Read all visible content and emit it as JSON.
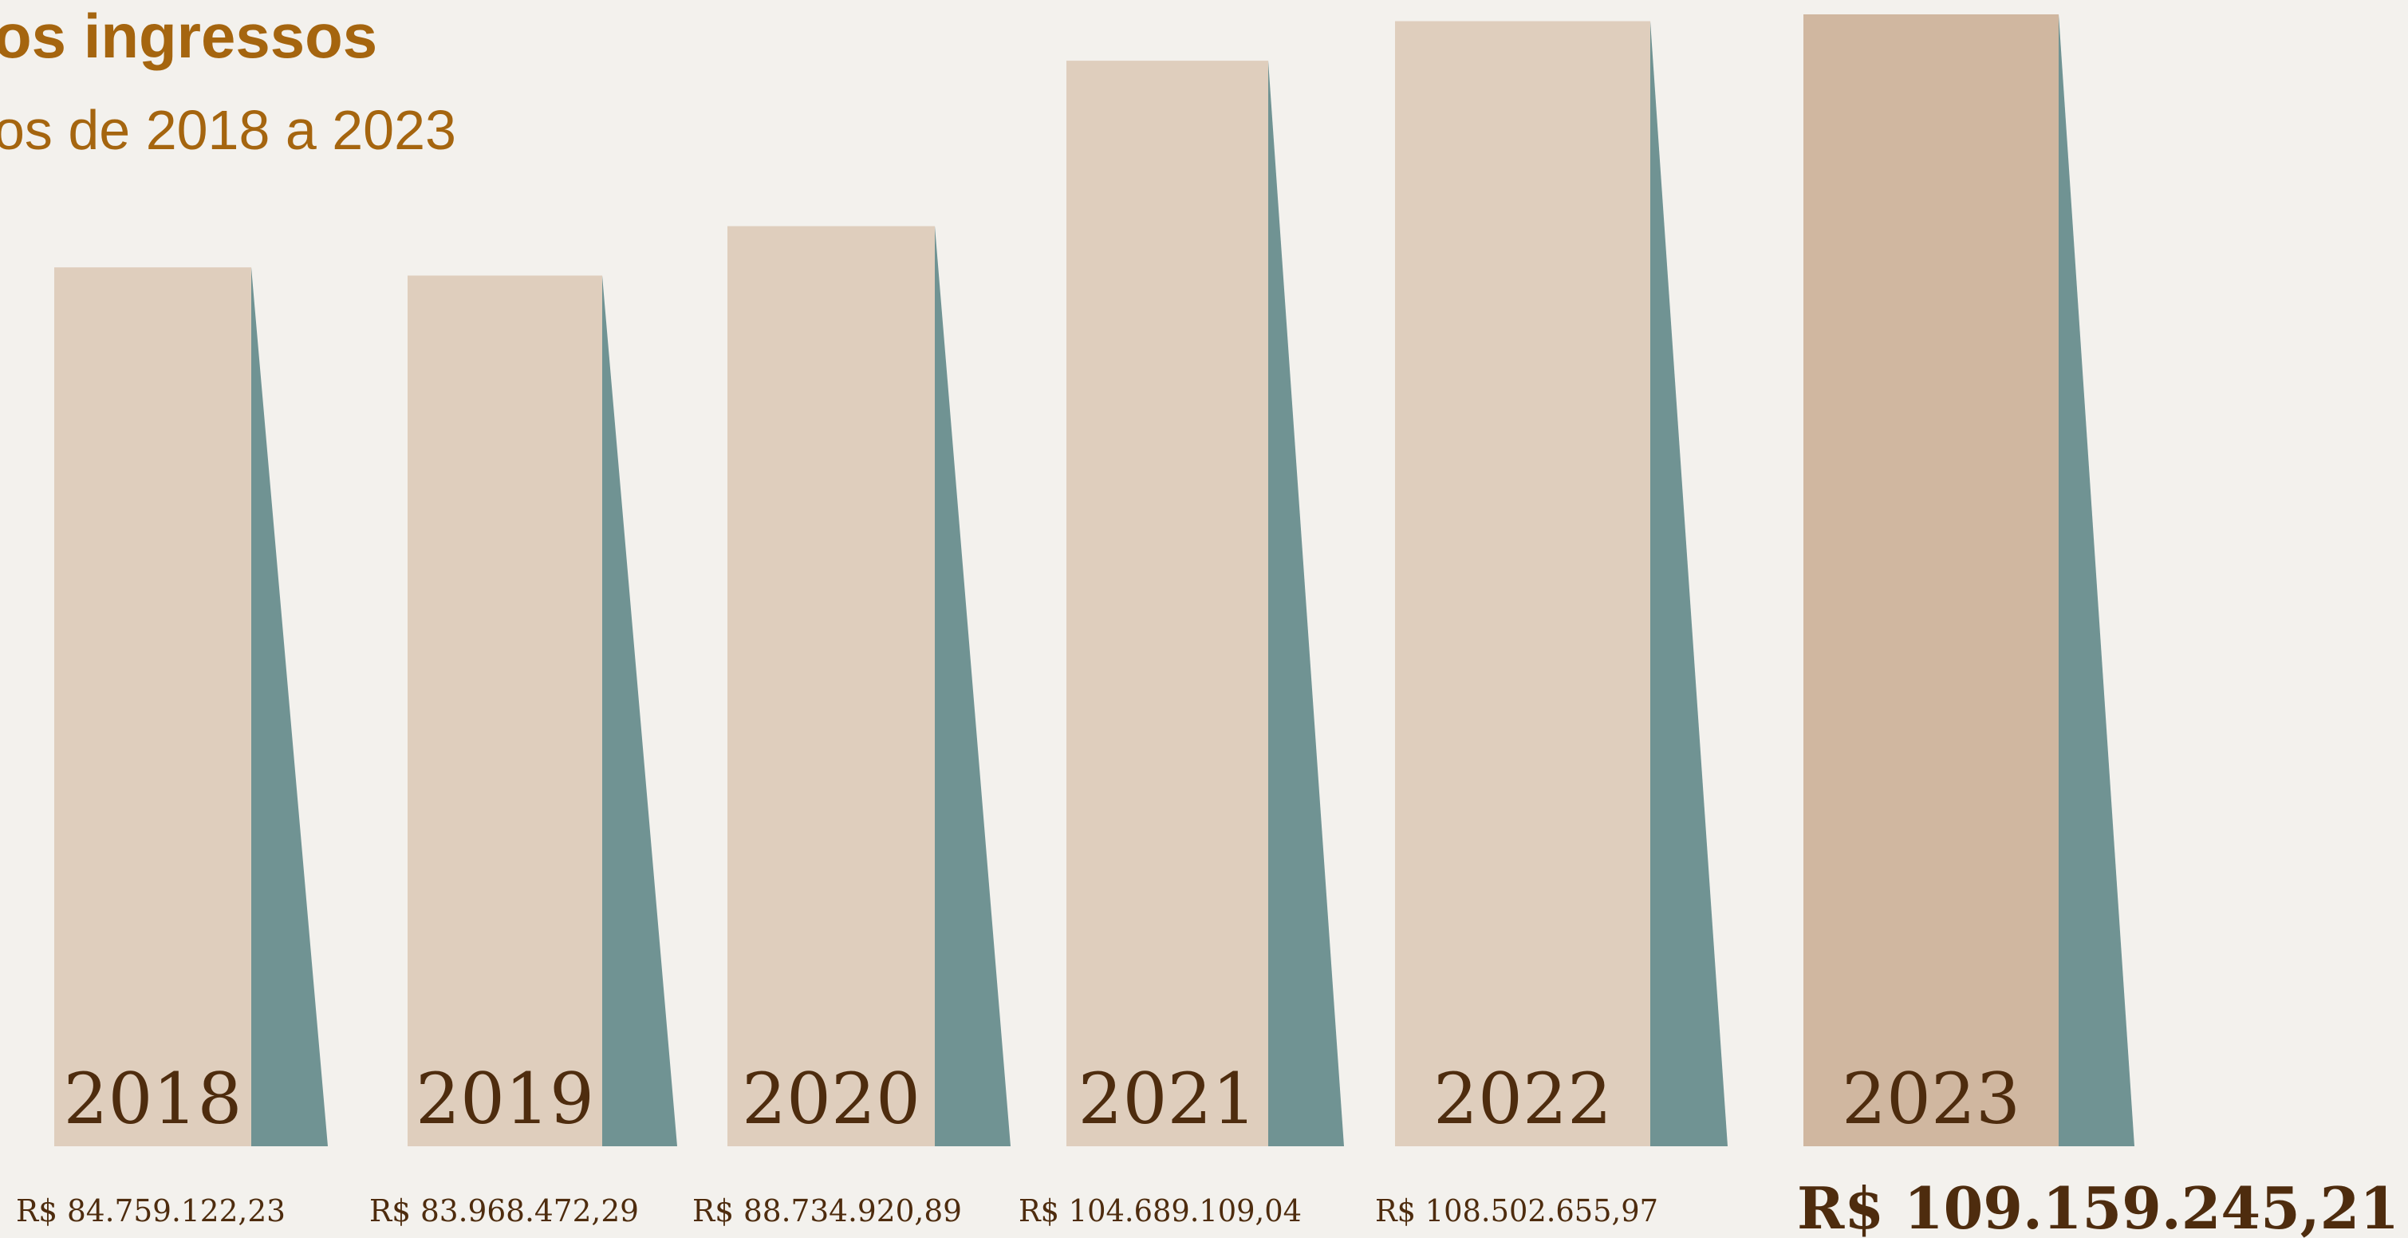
{
  "header": {
    "title": "os ingressos",
    "subtitle": "os de 2018 a 2023"
  },
  "colors": {
    "bar": "#dfcebd",
    "bar_highlight": "#d0b7a0",
    "shadow": "#709393",
    "text": "#4e2c0e",
    "title": "#a5650f",
    "background": "#f3f1ed"
  },
  "chart_data": {
    "type": "bar",
    "title": "os ingressos",
    "subtitle": "os de 2018 a 2023",
    "categories": [
      "2018",
      "2019",
      "2020",
      "2021",
      "2022",
      "2023"
    ],
    "values": [
      84759122.23,
      83968472.29,
      88734920.89,
      104689109.04,
      108502655.97,
      109159245.21
    ],
    "value_labels": [
      "R$ 84.759.122,23",
      "R$ 83.968.472,29",
      "R$ 88.734.920,89",
      "R$ 104.689.109,04",
      "R$ 108.502.655,97",
      "R$ 109.159.245,21"
    ],
    "highlight_index": 5,
    "grid": false,
    "legend": "none"
  }
}
